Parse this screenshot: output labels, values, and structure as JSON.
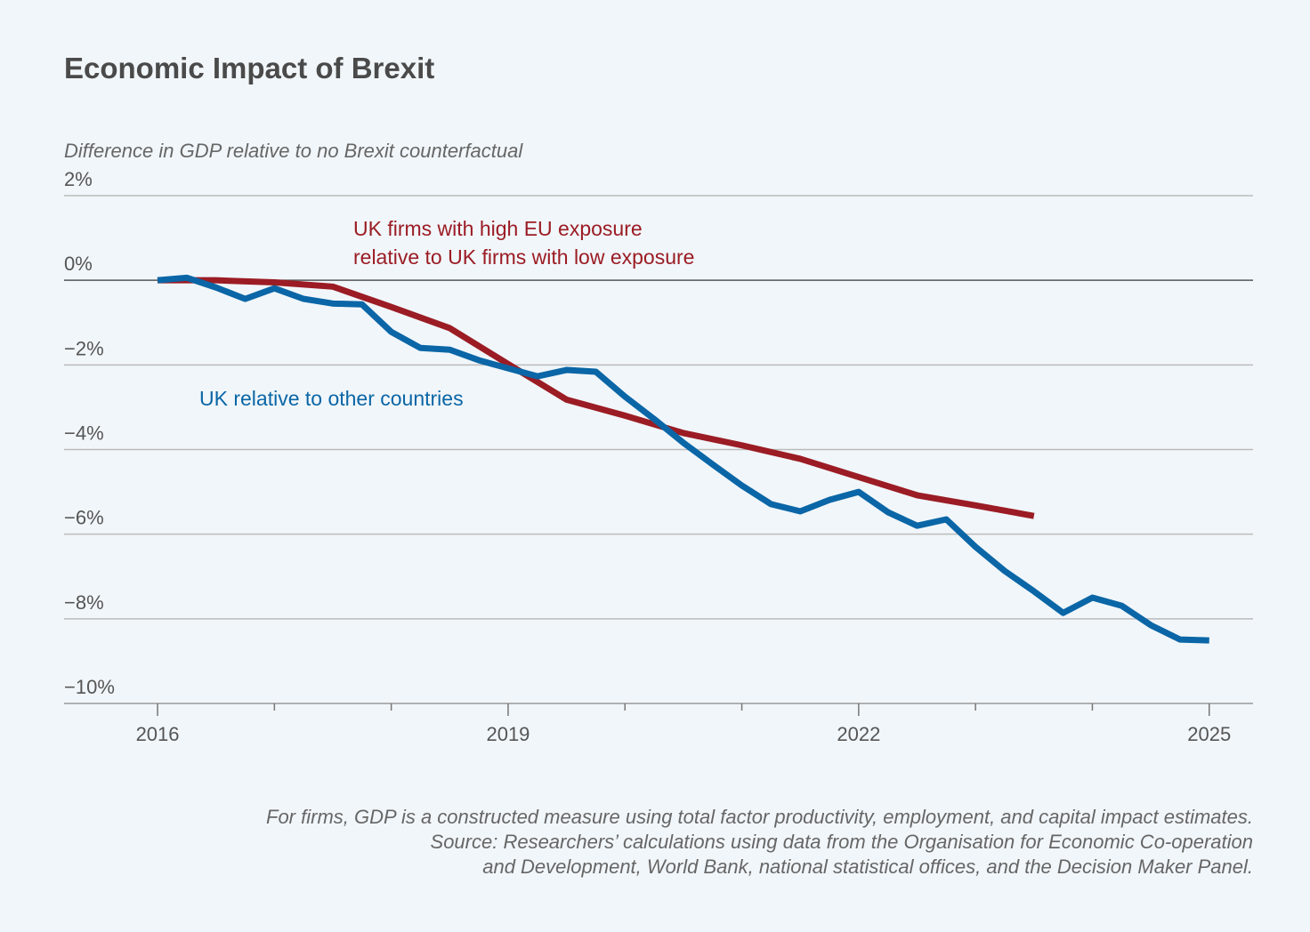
{
  "chart_data": {
    "type": "line",
    "title": "Economic Impact of Brexit",
    "y_label": "Difference in GDP relative to no Brexit counterfactual",
    "notes": [
      "For firms, GDP is a constructed measure using total factor productivity, employment, and capital impact estimates.",
      "Source: Researchers’ calculations using data from the Organisation for Economic Co-operation",
      "and Development, World Bank, national statistical offices, and the Decision Maker Panel."
    ],
    "xlim": [
      2015.2,
      2025.375
    ],
    "xticks": [
      2016,
      2019,
      2022,
      2025
    ],
    "minor_xticks": [
      2017,
      2018,
      2020,
      2021,
      2023,
      2024
    ],
    "ylim": [
      -10,
      2
    ],
    "yticks": [
      {
        "value": 2,
        "label": "2%"
      },
      {
        "value": 0,
        "label": "0%"
      },
      {
        "value": -2,
        "label": "−2%"
      },
      {
        "value": -4,
        "label": "−4%"
      },
      {
        "value": -6,
        "label": "−6%"
      },
      {
        "value": -8,
        "label": "−8%"
      },
      {
        "value": -10,
        "label": "−10%"
      }
    ],
    "grid": true,
    "series": [
      {
        "name": "UK firms with high EU exposure relative to UK firms with low exposure",
        "color": "#9b1c24",
        "x": [
          2016,
          2016.5,
          2017,
          2017.5,
          2018,
          2018.5,
          2019,
          2019.5,
          2020,
          2020.5,
          2021,
          2021.5,
          2022,
          2022.5,
          2023,
          2023.5
        ],
        "values": [
          0,
          0,
          -0.05,
          -0.15,
          -0.63,
          -1.13,
          -1.98,
          -2.82,
          -3.2,
          -3.61,
          -3.9,
          -4.22,
          -4.65,
          -5.08,
          -5.32,
          -5.57
        ]
      },
      {
        "name": "UK relative to other countries",
        "color": "#0a66a6",
        "x": [
          2016,
          2016.25,
          2016.5,
          2016.75,
          2017,
          2017.25,
          2017.5,
          2017.75,
          2018,
          2018.25,
          2018.5,
          2018.75,
          2019,
          2019.25,
          2019.5,
          2019.75,
          2020,
          2020.25,
          2020.5,
          2020.75,
          2021,
          2021.25,
          2021.5,
          2021.75,
          2022,
          2022.25,
          2022.5,
          2022.75,
          2023,
          2023.25,
          2023.5,
          2023.75,
          2024,
          2024.25,
          2024.5,
          2024.75,
          2025
        ],
        "values": [
          0,
          0.06,
          -0.17,
          -0.44,
          -0.19,
          -0.44,
          -0.55,
          -0.57,
          -1.22,
          -1.6,
          -1.64,
          -1.89,
          -2.08,
          -2.27,
          -2.12,
          -2.16,
          -2.75,
          -3.28,
          -3.84,
          -4.35,
          -4.85,
          -5.29,
          -5.46,
          -5.19,
          -5.0,
          -5.48,
          -5.8,
          -5.65,
          -6.3,
          -6.87,
          -7.35,
          -7.86,
          -7.5,
          -7.69,
          -8.15,
          -8.49,
          -8.51
        ]
      }
    ]
  }
}
